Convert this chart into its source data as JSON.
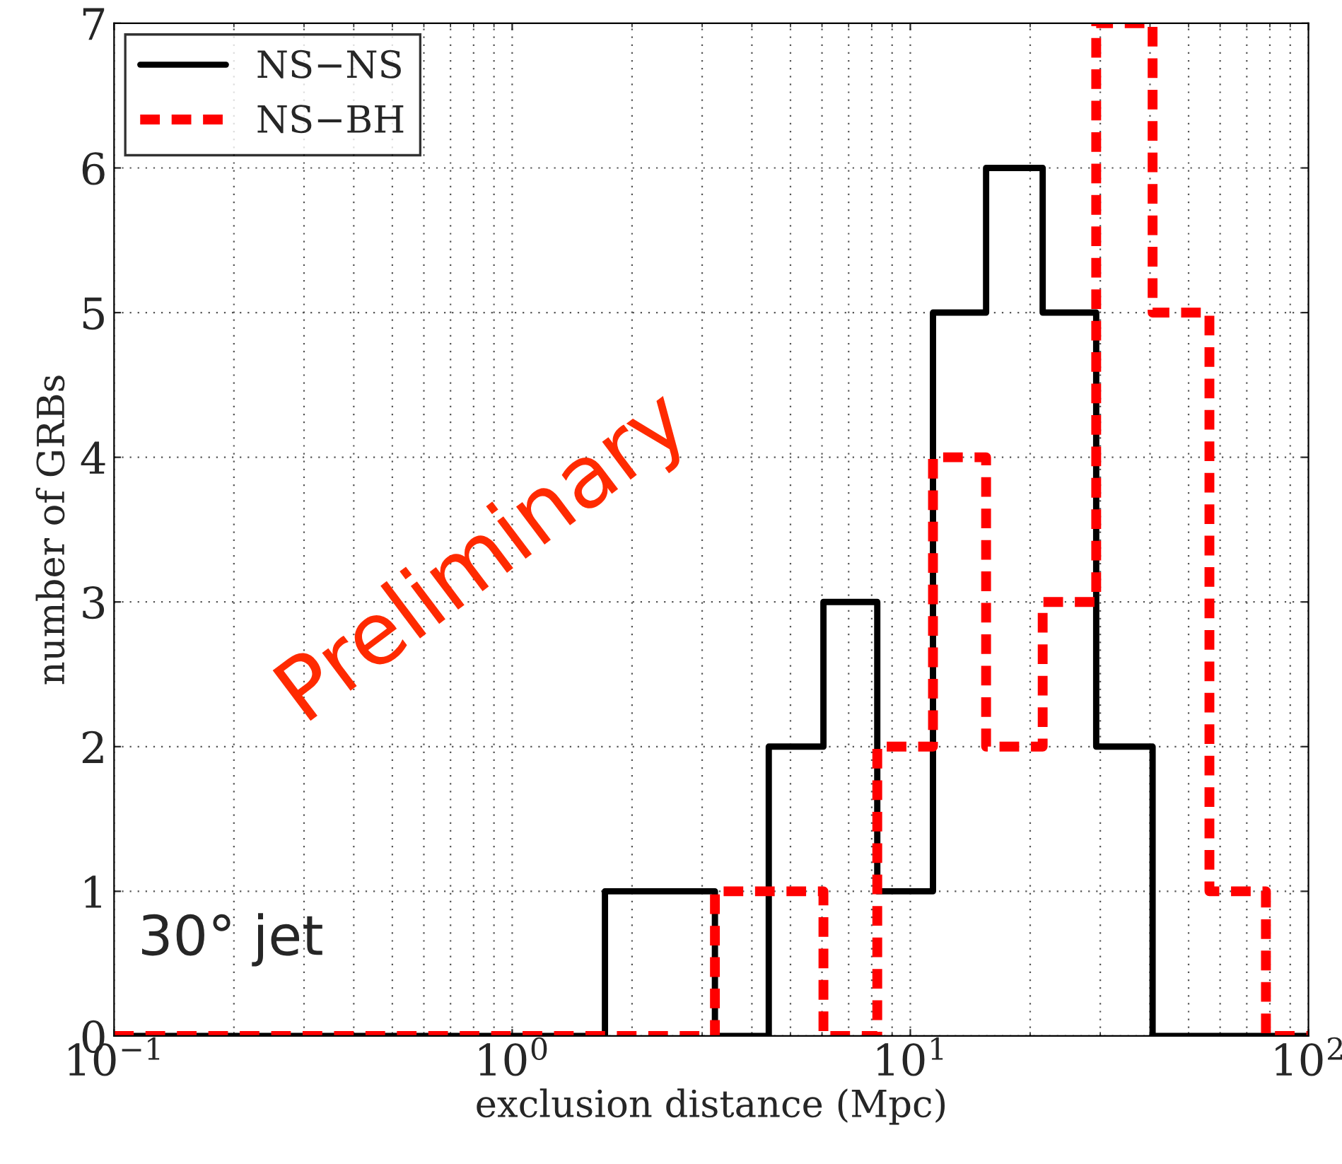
{
  "chart_data": {
    "type": "histogram",
    "xlabel": "exclusion distance (Mpc)",
    "ylabel": "number of GRBs",
    "bins": [
      0.1,
      1.71,
      2.34,
      3.23,
      4.41,
      6.05,
      8.26,
      11.4,
      15.5,
      21.5,
      29.3,
      40.6,
      56.4,
      78.2,
      100
    ],
    "series": [
      {
        "name": "NS−NS",
        "color": "#000000",
        "line_style": "solid",
        "values": [
          0,
          1,
          1,
          0,
          2,
          3,
          1,
          5,
          6,
          5,
          2,
          0,
          0,
          0
        ]
      },
      {
        "name": "NS−BH",
        "color": "#ff0000",
        "line_style": "dashed",
        "values": [
          0,
          0,
          0,
          1,
          1,
          0,
          2,
          4,
          2,
          3,
          7,
          5,
          1,
          0
        ]
      }
    ],
    "log": "x",
    "xlim": [
      0.1,
      100
    ],
    "xticks": [
      {
        "value": 0.1,
        "label": "10$^{−1}$"
      },
      {
        "value": 1,
        "label": "10$^{0}$"
      },
      {
        "value": 10,
        "label": "10$^{1}$"
      },
      {
        "value": 100,
        "label": "10$^{2}$"
      }
    ],
    "ylim": [
      0,
      7
    ],
    "yticks": [
      0,
      1,
      2,
      3,
      4,
      5,
      6,
      7
    ],
    "grid": true,
    "legend": "top left",
    "annotations": [
      "Preliminary",
      "30° jet"
    ]
  }
}
